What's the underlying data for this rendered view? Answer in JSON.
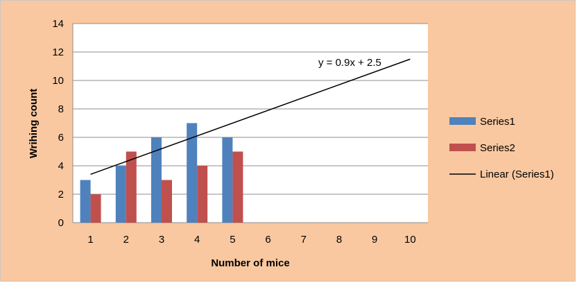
{
  "chart_data": {
    "type": "bar",
    "title": "",
    "xlabel": "Number of mice",
    "ylabel": "Wrihing count",
    "categories": [
      "1",
      "2",
      "3",
      "4",
      "5",
      "6",
      "7",
      "8",
      "9",
      "10"
    ],
    "ylim": [
      0,
      14
    ],
    "yticks": [
      0,
      2,
      4,
      6,
      8,
      10,
      12,
      14
    ],
    "grid": true,
    "legend_position": "right",
    "series": [
      {
        "name": "Series1",
        "color": "#4f81bd",
        "values": [
          3,
          4,
          6,
          7,
          6,
          null,
          null,
          null,
          null,
          null
        ]
      },
      {
        "name": "Series2",
        "color": "#c0504d",
        "values": [
          2,
          5,
          3,
          4,
          5,
          null,
          null,
          null,
          null,
          null
        ]
      }
    ],
    "trendline": {
      "name": "Linear (Series1)",
      "type": "linear",
      "slope": 0.9,
      "intercept": 2.5,
      "x_range": [
        1,
        10
      ],
      "color": "#000000",
      "equation_label": "y = 0.9x + 2.5"
    }
  }
}
